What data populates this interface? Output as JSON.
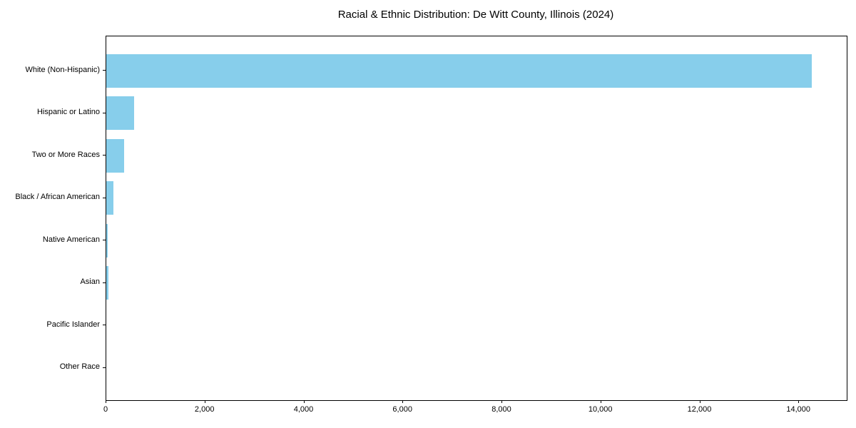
{
  "figure": {
    "background": "#ffffff"
  },
  "chart_data": {
    "type": "bar",
    "orientation": "horizontal",
    "title": "Racial & Ethnic Distribution: De Witt County, Illinois (2024)",
    "categories": [
      "White (Non-Hispanic)",
      "Hispanic or Latino",
      "Two or More Races",
      "Black / African American",
      "Native American",
      "Asian",
      "Pacific Islander",
      "Other Race"
    ],
    "values": [
      14250,
      565,
      360,
      150,
      35,
      45,
      0,
      0
    ],
    "bar_color": "#87CEEB",
    "axis_color": "#000000",
    "text_color": "#000000",
    "xlabel": "",
    "ylabel": "",
    "xlim": [
      0,
      14963
    ],
    "xticks": [
      0,
      2000,
      4000,
      6000,
      8000,
      10000,
      12000,
      14000
    ],
    "xtick_labels": [
      "0",
      "2,000",
      "4,000",
      "6,000",
      "8,000",
      "10,000",
      "12,000",
      "14,000"
    ],
    "grid": false,
    "legend": null
  }
}
